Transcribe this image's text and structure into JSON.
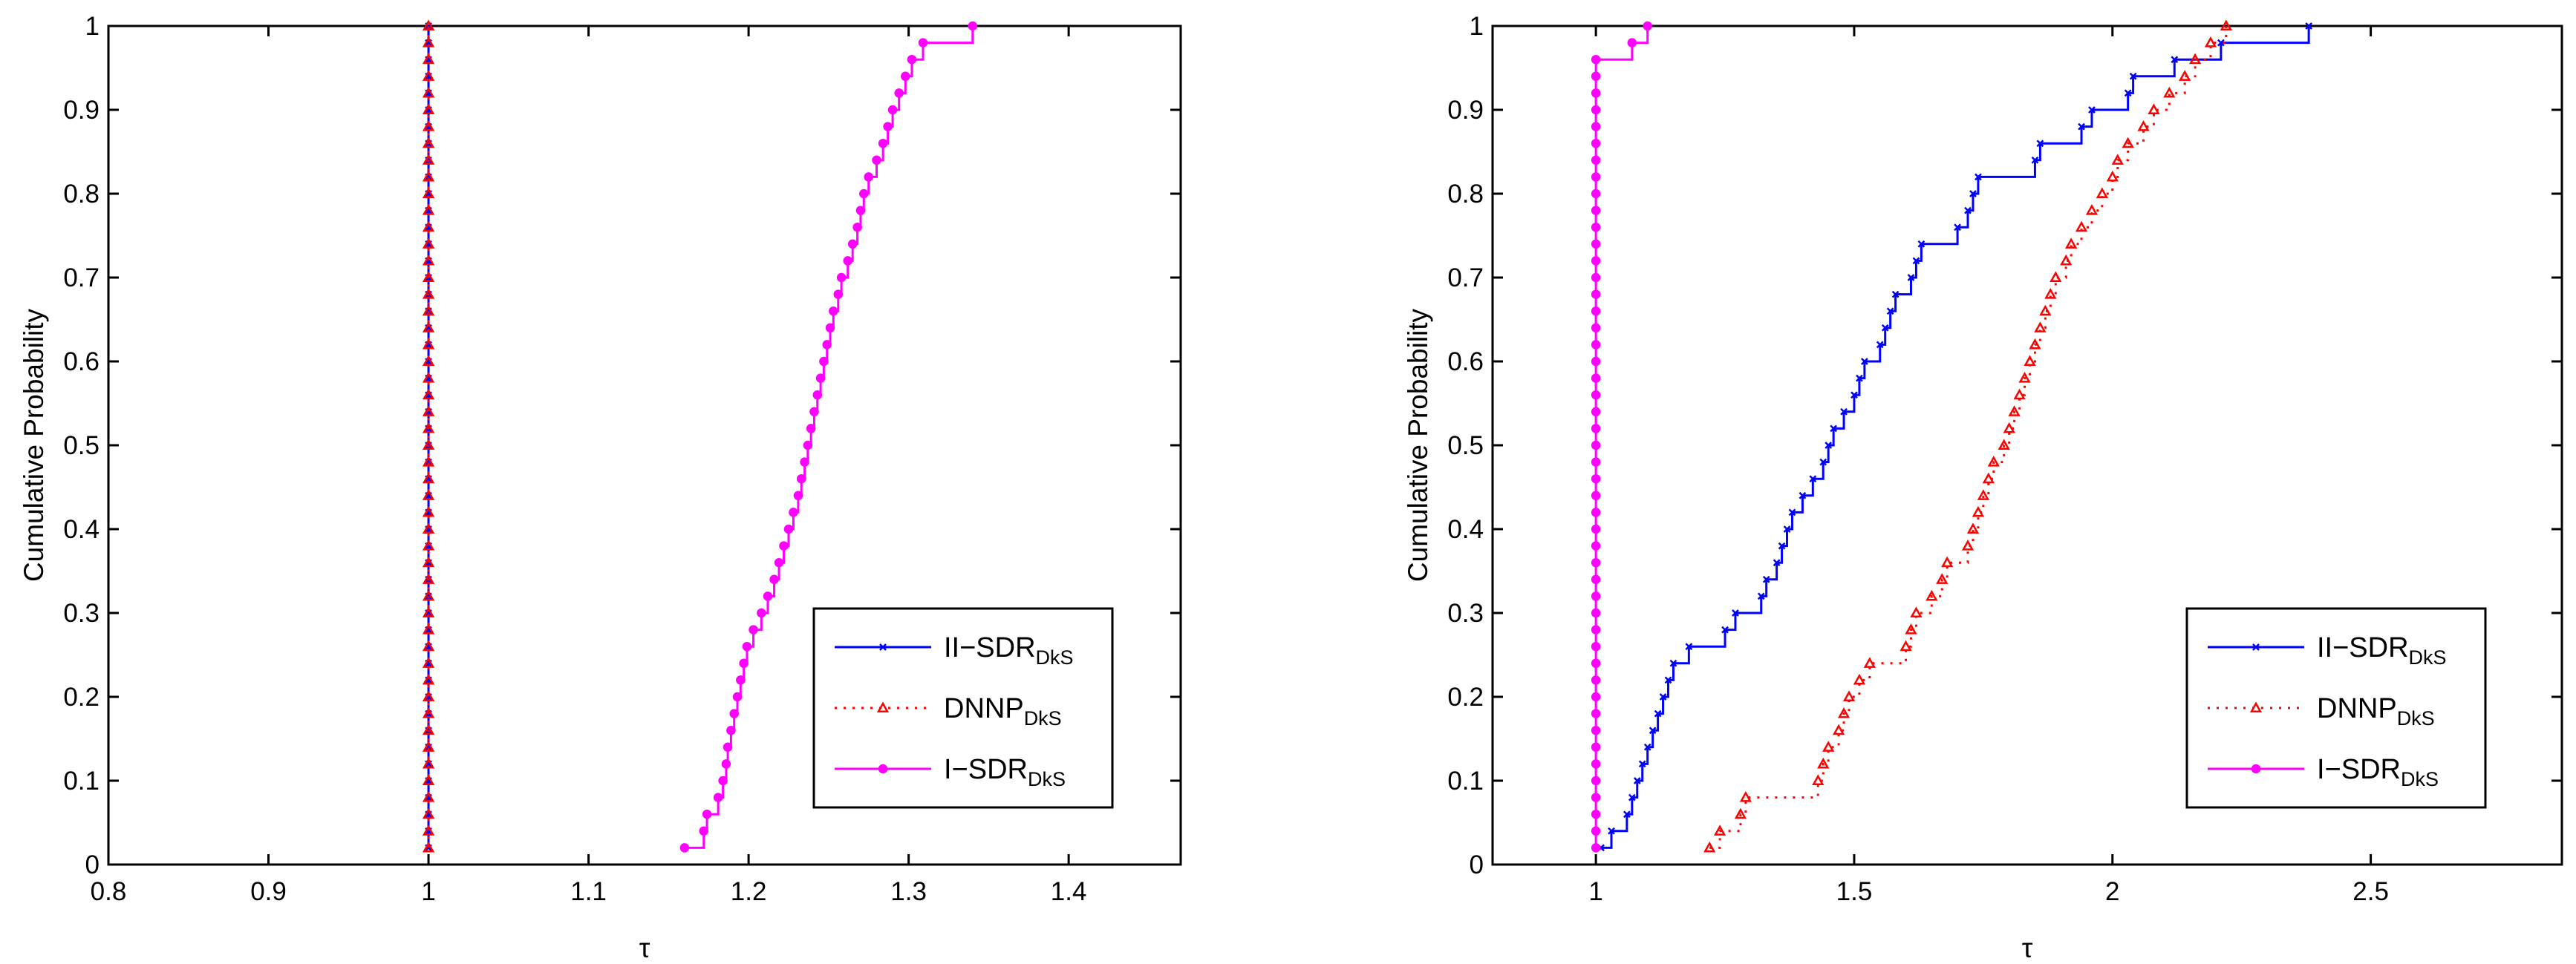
{
  "chart_data": [
    {
      "type": "line",
      "subtype": "step-cdf",
      "title": "",
      "xlabel": "τ",
      "ylabel": "Cumulative Probability",
      "xlim": [
        0.8,
        1.47
      ],
      "ylim": [
        0,
        1
      ],
      "xticks": [
        "0.8",
        "0.9",
        "1",
        "1.1",
        "1.2",
        "1.3",
        "1.4"
      ],
      "xtick_values": [
        0.8,
        0.9,
        1.0,
        1.1,
        1.2,
        1.3,
        1.4
      ],
      "yticks": [
        "0",
        "0.1",
        "0.2",
        "0.3",
        "0.4",
        "0.5",
        "0.6",
        "0.7",
        "0.8",
        "0.9",
        "1"
      ],
      "ytick_values": [
        0,
        0.1,
        0.2,
        0.3,
        0.4,
        0.5,
        0.6,
        0.7,
        0.8,
        0.9,
        1.0
      ],
      "legend_position": "bottom-right",
      "series": [
        {
          "name": "II−SDR",
          "sub": "DkS",
          "color": "#0000ff",
          "dash": "solid",
          "marker": "x",
          "x": [
            1,
            1,
            1,
            1,
            1,
            1,
            1,
            1,
            1,
            1,
            1,
            1,
            1,
            1,
            1,
            1,
            1,
            1,
            1,
            1,
            1,
            1,
            1,
            1,
            1,
            1,
            1,
            1,
            1,
            1,
            1,
            1,
            1,
            1,
            1,
            1,
            1,
            1,
            1,
            1,
            1,
            1,
            1,
            1,
            1,
            1,
            1,
            1,
            1,
            1
          ],
          "y": [
            0.02,
            0.04,
            0.06,
            0.08,
            0.1,
            0.12,
            0.14,
            0.16,
            0.18,
            0.2,
            0.22,
            0.24,
            0.26,
            0.28,
            0.3,
            0.32,
            0.34,
            0.36,
            0.38,
            0.4,
            0.42,
            0.44,
            0.46,
            0.48,
            0.5,
            0.52,
            0.54,
            0.56,
            0.58,
            0.6,
            0.62,
            0.64,
            0.66,
            0.68,
            0.7,
            0.72,
            0.74,
            0.76,
            0.78,
            0.8,
            0.82,
            0.84,
            0.86,
            0.88,
            0.9,
            0.92,
            0.94,
            0.96,
            0.98,
            1.0
          ]
        },
        {
          "name": "DNNP",
          "sub": "DkS",
          "color": "#ff0000",
          "dash": "dotted",
          "marker": "triangle",
          "x": [
            1,
            1,
            1,
            1,
            1,
            1,
            1,
            1,
            1,
            1,
            1,
            1,
            1,
            1,
            1,
            1,
            1,
            1,
            1,
            1,
            1,
            1,
            1,
            1,
            1,
            1,
            1,
            1,
            1,
            1,
            1,
            1,
            1,
            1,
            1,
            1,
            1,
            1,
            1,
            1,
            1,
            1,
            1,
            1,
            1,
            1,
            1,
            1,
            1,
            1
          ],
          "y": [
            0.02,
            0.04,
            0.06,
            0.08,
            0.1,
            0.12,
            0.14,
            0.16,
            0.18,
            0.2,
            0.22,
            0.24,
            0.26,
            0.28,
            0.3,
            0.32,
            0.34,
            0.36,
            0.38,
            0.4,
            0.42,
            0.44,
            0.46,
            0.48,
            0.5,
            0.52,
            0.54,
            0.56,
            0.58,
            0.6,
            0.62,
            0.64,
            0.66,
            0.68,
            0.7,
            0.72,
            0.74,
            0.76,
            0.78,
            0.8,
            0.82,
            0.84,
            0.86,
            0.88,
            0.9,
            0.92,
            0.94,
            0.96,
            0.98,
            1.0
          ]
        },
        {
          "name": "I−SDR",
          "sub": "DkS",
          "color": "#ff00ff",
          "dash": "solid",
          "marker": "circle",
          "x": [
            1.16,
            1.172,
            1.174,
            1.181,
            1.184,
            1.186,
            1.187,
            1.189,
            1.191,
            1.193,
            1.195,
            1.197,
            1.199,
            1.203,
            1.208,
            1.212,
            1.216,
            1.219,
            1.222,
            1.225,
            1.228,
            1.231,
            1.233,
            1.235,
            1.237,
            1.239,
            1.241,
            1.243,
            1.245,
            1.247,
            1.249,
            1.251,
            1.253,
            1.256,
            1.258,
            1.262,
            1.265,
            1.268,
            1.27,
            1.272,
            1.275,
            1.28,
            1.284,
            1.287,
            1.29,
            1.294,
            1.298,
            1.302,
            1.309,
            1.34
          ],
          "y": [
            0.02,
            0.04,
            0.06,
            0.08,
            0.1,
            0.12,
            0.14,
            0.16,
            0.18,
            0.2,
            0.22,
            0.24,
            0.26,
            0.28,
            0.3,
            0.32,
            0.34,
            0.36,
            0.38,
            0.4,
            0.42,
            0.44,
            0.46,
            0.48,
            0.5,
            0.52,
            0.54,
            0.56,
            0.58,
            0.6,
            0.62,
            0.64,
            0.66,
            0.68,
            0.7,
            0.72,
            0.74,
            0.76,
            0.78,
            0.8,
            0.82,
            0.84,
            0.86,
            0.88,
            0.9,
            0.92,
            0.94,
            0.96,
            0.98,
            1.0
          ]
        }
      ]
    },
    {
      "type": "line",
      "subtype": "step-cdf",
      "title": "",
      "xlabel": "τ",
      "ylabel": "Cumulative Probability",
      "xlim": [
        0.8,
        2.87
      ],
      "ylim": [
        0,
        1
      ],
      "xticks": [
        "1",
        "1.5",
        "2",
        "2.5"
      ],
      "xtick_values": [
        1.0,
        1.5,
        2.0,
        2.5
      ],
      "yticks": [
        "0",
        "0.1",
        "0.2",
        "0.3",
        "0.4",
        "0.5",
        "0.6",
        "0.7",
        "0.8",
        "0.9",
        "1"
      ],
      "ytick_values": [
        0,
        0.1,
        0.2,
        0.3,
        0.4,
        0.5,
        0.6,
        0.7,
        0.8,
        0.9,
        1.0
      ],
      "legend_position": "bottom-right",
      "series": [
        {
          "name": "II−SDR",
          "sub": "DkS",
          "color": "#0000ff",
          "dash": "solid",
          "marker": "x",
          "x": [
            1.01,
            1.03,
            1.06,
            1.07,
            1.08,
            1.09,
            1.1,
            1.11,
            1.12,
            1.13,
            1.14,
            1.15,
            1.18,
            1.25,
            1.27,
            1.32,
            1.33,
            1.35,
            1.36,
            1.37,
            1.38,
            1.4,
            1.42,
            1.44,
            1.45,
            1.46,
            1.48,
            1.5,
            1.51,
            1.52,
            1.55,
            1.56,
            1.57,
            1.58,
            1.61,
            1.62,
            1.63,
            1.7,
            1.72,
            1.73,
            1.74,
            1.85,
            1.86,
            1.94,
            1.96,
            2.03,
            2.04,
            2.12,
            2.21,
            2.38
          ],
          "y": [
            0.02,
            0.04,
            0.06,
            0.08,
            0.1,
            0.12,
            0.14,
            0.16,
            0.18,
            0.2,
            0.22,
            0.24,
            0.26,
            0.28,
            0.3,
            0.32,
            0.34,
            0.36,
            0.38,
            0.4,
            0.42,
            0.44,
            0.46,
            0.48,
            0.5,
            0.52,
            0.54,
            0.56,
            0.58,
            0.6,
            0.62,
            0.64,
            0.66,
            0.68,
            0.7,
            0.72,
            0.74,
            0.76,
            0.78,
            0.8,
            0.82,
            0.84,
            0.86,
            0.88,
            0.9,
            0.92,
            0.94,
            0.96,
            0.98,
            1.0
          ]
        },
        {
          "name": "DNNP",
          "sub": "DkS",
          "color": "#ff0000",
          "dash": "dotted",
          "marker": "triangle",
          "x": [
            1.22,
            1.24,
            1.28,
            1.29,
            1.43,
            1.44,
            1.45,
            1.47,
            1.48,
            1.49,
            1.51,
            1.53,
            1.6,
            1.61,
            1.62,
            1.65,
            1.67,
            1.68,
            1.72,
            1.73,
            1.74,
            1.75,
            1.76,
            1.77,
            1.79,
            1.8,
            1.81,
            1.82,
            1.83,
            1.84,
            1.85,
            1.86,
            1.87,
            1.88,
            1.89,
            1.91,
            1.92,
            1.94,
            1.96,
            1.98,
            2.0,
            2.01,
            2.03,
            2.06,
            2.08,
            2.11,
            2.14,
            2.16,
            2.19,
            2.22
          ],
          "y": [
            0.02,
            0.04,
            0.06,
            0.08,
            0.1,
            0.12,
            0.14,
            0.16,
            0.18,
            0.2,
            0.22,
            0.24,
            0.26,
            0.28,
            0.3,
            0.32,
            0.34,
            0.36,
            0.38,
            0.4,
            0.42,
            0.44,
            0.46,
            0.48,
            0.5,
            0.52,
            0.54,
            0.56,
            0.58,
            0.6,
            0.62,
            0.64,
            0.66,
            0.68,
            0.7,
            0.72,
            0.74,
            0.76,
            0.78,
            0.8,
            0.82,
            0.84,
            0.86,
            0.88,
            0.9,
            0.92,
            0.94,
            0.96,
            0.98,
            1.0
          ]
        },
        {
          "name": "I−SDR",
          "sub": "DkS",
          "color": "#ff00ff",
          "dash": "solid",
          "marker": "circle",
          "x": [
            1,
            1,
            1,
            1,
            1,
            1,
            1,
            1,
            1,
            1,
            1,
            1,
            1,
            1,
            1,
            1,
            1,
            1,
            1,
            1,
            1,
            1,
            1,
            1,
            1,
            1,
            1,
            1,
            1,
            1,
            1,
            1,
            1,
            1,
            1,
            1,
            1,
            1,
            1,
            1,
            1,
            1,
            1,
            1,
            1,
            1,
            1,
            1,
            1.07,
            1.1
          ],
          "y": [
            0.02,
            0.04,
            0.06,
            0.08,
            0.1,
            0.12,
            0.14,
            0.16,
            0.18,
            0.2,
            0.22,
            0.24,
            0.26,
            0.28,
            0.3,
            0.32,
            0.34,
            0.36,
            0.38,
            0.4,
            0.42,
            0.44,
            0.46,
            0.48,
            0.5,
            0.52,
            0.54,
            0.56,
            0.58,
            0.6,
            0.62,
            0.64,
            0.66,
            0.68,
            0.7,
            0.72,
            0.74,
            0.76,
            0.78,
            0.8,
            0.82,
            0.84,
            0.86,
            0.88,
            0.9,
            0.92,
            0.94,
            0.96,
            0.98,
            1.0
          ]
        }
      ]
    }
  ]
}
